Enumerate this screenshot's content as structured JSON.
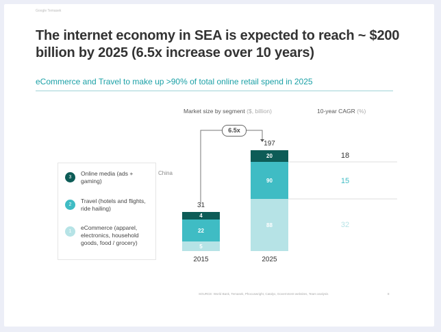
{
  "header": {
    "brand": "Google  Temasek"
  },
  "title": "The internet economy in SEA is expected to reach ~ $200 billion by 2025 (6.5x increase over 10 years)",
  "subtitle": "eCommerce and Travel to make up >90% of total online retail spend in 2025",
  "chart_data": {
    "type": "bar",
    "stacked": true,
    "title": "Market size by segment",
    "ylabel": "($, billion)",
    "categories": [
      "2015",
      "2025"
    ],
    "totals": [
      31,
      197
    ],
    "series": [
      {
        "name": "eCommerce (apparel, electronics, household goods, food / grocery)",
        "values": [
          5,
          88
        ],
        "color": "#b6e3e6",
        "cagr": 32,
        "legend_num": "1"
      },
      {
        "name": "Travel (hotels and flights, ride hailing)",
        "values": [
          22,
          90
        ],
        "color": "#3fbcc4",
        "cagr": 15,
        "legend_num": "2"
      },
      {
        "name": "Online media (ads + gaming)",
        "values": [
          4,
          20
        ],
        "color": "#0d5c57",
        "cagr": 18,
        "legend_num": "3"
      }
    ],
    "growth_label": "6.5x",
    "cagr_header": "10-year CAGR",
    "cagr_unit": "(%)"
  },
  "annotation": "China",
  "footer": {
    "source": "SOURCE: World Bank, Temasek, Phocuswright, Catalyx, Government websites, Team analysis",
    "page": "8"
  }
}
